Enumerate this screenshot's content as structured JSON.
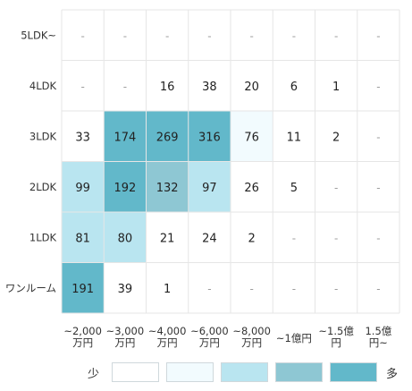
{
  "chart_data": {
    "type": "heatmap",
    "rows": [
      "5LDK~",
      "4LDK",
      "3LDK",
      "2LDK",
      "1LDK",
      "ワンルーム"
    ],
    "columns": [
      [
        "~2,000",
        "万円"
      ],
      [
        "~3,000",
        "万円"
      ],
      [
        "~4,000",
        "万円"
      ],
      [
        "~6,000",
        "万円"
      ],
      [
        "~8,000",
        "万円"
      ],
      [
        "~1億円"
      ],
      [
        "~1.5億",
        "円"
      ],
      [
        "1.5億",
        "円~"
      ]
    ],
    "values": [
      [
        null,
        null,
        null,
        null,
        null,
        null,
        null,
        null
      ],
      [
        null,
        null,
        16,
        38,
        20,
        6,
        1,
        null
      ],
      [
        33,
        174,
        269,
        316,
        76,
        11,
        2,
        null
      ],
      [
        99,
        192,
        132,
        97,
        26,
        5,
        null,
        null
      ],
      [
        81,
        80,
        21,
        24,
        2,
        null,
        null,
        null
      ],
      [
        191,
        39,
        1,
        null,
        null,
        null,
        null,
        null
      ]
    ],
    "levels": [
      [
        null,
        null,
        null,
        null,
        null,
        null,
        null,
        null
      ],
      [
        null,
        null,
        0,
        0,
        0,
        0,
        0,
        null
      ],
      [
        0,
        4,
        4,
        4,
        1,
        0,
        0,
        null
      ],
      [
        2,
        4,
        3,
        2,
        0,
        0,
        null,
        null
      ],
      [
        2,
        2,
        0,
        0,
        0,
        null,
        null,
        null
      ],
      [
        4,
        0,
        0,
        null,
        null,
        null,
        null,
        null
      ]
    ],
    "empty_text": "-",
    "colors": [
      "#ffffff",
      "#f2fbfe",
      "#b9e5f0",
      "#8ec7d3",
      "#62b8ca"
    ]
  },
  "legend": {
    "low_label": "少",
    "high_label": "多",
    "swatches": [
      "#ffffff",
      "#f2fbfe",
      "#b9e5f0",
      "#8ec7d3",
      "#62b8ca"
    ]
  }
}
